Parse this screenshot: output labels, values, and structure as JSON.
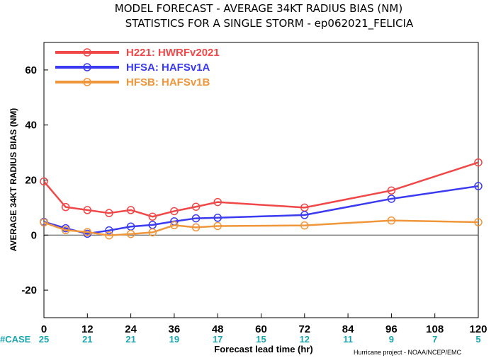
{
  "chart_data": {
    "type": "line",
    "title": "MODEL FORECAST - AVERAGE 34KT RADIUS BIAS (NM)",
    "subtitle": "STATISTICS FOR A SINGLE STORM - ep062021_FELICIA",
    "xlabel": "Forecast lead time (hr)",
    "ylabel": "AVERAGE 34KT RADIUS BIAS (NM)",
    "xlim": [
      0,
      120
    ],
    "ylim": [
      -30,
      70
    ],
    "xticks": [
      0,
      12,
      24,
      36,
      48,
      60,
      72,
      84,
      96,
      108,
      120
    ],
    "yticks": [
      -20,
      0,
      20,
      40,
      60
    ],
    "zero_line": true,
    "legend_position": "top-left",
    "series": [
      {
        "name": "H221: HWRFv2021",
        "color": "#f04848",
        "x": [
          0,
          6,
          12,
          18,
          24,
          30,
          36,
          42,
          48,
          72,
          96,
          120
        ],
        "y": [
          19.5,
          10.2,
          9.1,
          8.0,
          9.1,
          6.7,
          8.7,
          10.3,
          12.0,
          10.0,
          16.2,
          26.4
        ]
      },
      {
        "name": "HFSA: HAFSv1A",
        "color": "#3a3af0",
        "x": [
          0,
          6,
          12,
          18,
          24,
          30,
          36,
          42,
          48,
          72,
          96,
          120
        ],
        "y": [
          4.8,
          2.5,
          0.5,
          1.7,
          3.1,
          3.7,
          5.0,
          6.1,
          6.3,
          7.3,
          13.2,
          17.8
        ]
      },
      {
        "name": "HFSB: HAFSv1B",
        "color": "#f0963a",
        "x": [
          0,
          6,
          12,
          18,
          24,
          30,
          36,
          42,
          48,
          72,
          96,
          120
        ],
        "y": [
          4.6,
          1.8,
          1.1,
          -0.1,
          0.4,
          1.0,
          3.6,
          2.8,
          3.3,
          3.5,
          5.3,
          4.7
        ]
      }
    ],
    "case_label": "#CASE",
    "case_counts": [
      {
        "x": 0,
        "n": "25"
      },
      {
        "x": 12,
        "n": "21"
      },
      {
        "x": 24,
        "n": "21"
      },
      {
        "x": 36,
        "n": "19"
      },
      {
        "x": 48,
        "n": "17"
      },
      {
        "x": 60,
        "n": "15"
      },
      {
        "x": 72,
        "n": "12"
      },
      {
        "x": 84,
        "n": "11"
      },
      {
        "x": 96,
        "n": "9"
      },
      {
        "x": 108,
        "n": "7"
      },
      {
        "x": 120,
        "n": "5"
      }
    ],
    "credit": "Hurricane project - NOAA/NCEP/EMC"
  }
}
